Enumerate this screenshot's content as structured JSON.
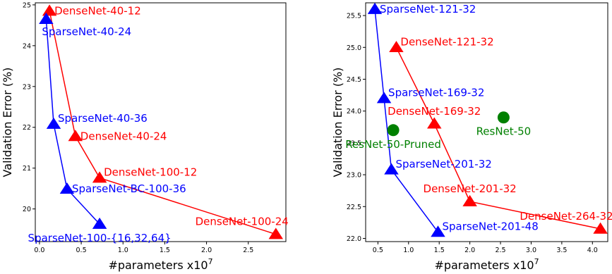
{
  "chart_data": [
    {
      "type": "scatter",
      "xlabel": "#parameters x10",
      "xlabel_exp": "7",
      "ylabel": "Validation Error (%)",
      "xlim": [
        -0.05,
        2.95
      ],
      "ylim": [
        19.2,
        25.05
      ],
      "xticks": [
        0.0,
        0.5,
        1.0,
        1.5,
        2.0,
        2.5
      ],
      "yticks": [
        20,
        21,
        22,
        23,
        24,
        25
      ],
      "xtick_labels": [
        "0.0",
        "0.5",
        "1.0",
        "1.5",
        "2.0",
        "2.5"
      ],
      "ytick_labels": [
        "20",
        "21",
        "22",
        "23",
        "24",
        "25"
      ],
      "grid": false,
      "series": [
        {
          "color": "#ff0000",
          "marker": "triangle",
          "line": true,
          "points": [
            {
              "x": 0.12,
              "y": 24.85,
              "label": "DenseNet-40-12",
              "label_pos": "right"
            },
            {
              "x": 0.43,
              "y": 21.78,
              "label": "DenseNet-40-24",
              "label_pos": "right"
            },
            {
              "x": 0.72,
              "y": 20.76,
              "label": "DenseNet-100-12",
              "label_pos": "right-up"
            },
            {
              "x": 2.83,
              "y": 19.38,
              "label": "DenseNet-100-24",
              "label_pos": "above-left"
            }
          ]
        },
        {
          "color": "#0000ff",
          "marker": "triangle",
          "line": true,
          "points": [
            {
              "x": 0.08,
              "y": 24.65,
              "label": "SparseNet-40-24",
              "label_pos": "below-right"
            },
            {
              "x": 0.17,
              "y": 22.08,
              "label": "SparseNet-40-36",
              "label_pos": "right-up"
            },
            {
              "x": 0.33,
              "y": 20.49,
              "label": "SparseNet-BC-100-36",
              "label_pos": "right"
            },
            {
              "x": 0.72,
              "y": 19.63,
              "label": "SparseNet-100-{16,32,64}",
              "label_pos": "below-center"
            }
          ]
        }
      ]
    },
    {
      "type": "scatter",
      "xlabel": "#parameters x10",
      "xlabel_exp": "7",
      "ylabel": "Validation Error (%)",
      "xlim": [
        0.3,
        4.25
      ],
      "ylim": [
        21.95,
        25.7
      ],
      "xticks": [
        0.5,
        1.0,
        1.5,
        2.0,
        2.5,
        3.0,
        3.5,
        4.0
      ],
      "yticks": [
        22.0,
        22.5,
        23.0,
        23.5,
        24.0,
        24.5,
        25.0,
        25.5
      ],
      "xtick_labels": [
        "0.5",
        "1.0",
        "1.5",
        "2.0",
        "2.5",
        "3.0",
        "3.5",
        "4.0"
      ],
      "ytick_labels": [
        "22.0",
        "22.5",
        "23.0",
        "23.5",
        "24.0",
        "24.5",
        "25.0",
        "25.5"
      ],
      "grid": false,
      "series": [
        {
          "color": "#ff0000",
          "marker": "triangle",
          "line": true,
          "points": [
            {
              "x": 0.8,
              "y": 25.0,
              "label": "DenseNet-121-32",
              "label_pos": "right-up"
            },
            {
              "x": 1.42,
              "y": 23.8,
              "label": "DenseNet-169-32",
              "label_pos": "above-center"
            },
            {
              "x": 2.0,
              "y": 22.58,
              "label": "DenseNet-201-32",
              "label_pos": "above-center"
            },
            {
              "x": 4.13,
              "y": 22.15,
              "label": "DenseNet-264-32",
              "label_pos": "above-left"
            }
          ]
        },
        {
          "color": "#0000ff",
          "marker": "triangle",
          "line": true,
          "points": [
            {
              "x": 0.45,
              "y": 25.6,
              "label": "SparseNet-121-32",
              "label_pos": "right"
            },
            {
              "x": 0.6,
              "y": 24.2,
              "label": "SparseNet-169-32",
              "label_pos": "right-up"
            },
            {
              "x": 0.72,
              "y": 23.08,
              "label": "SparseNet-201-32",
              "label_pos": "right-up"
            },
            {
              "x": 1.48,
              "y": 22.1,
              "label": "SparseNet-201-48",
              "label_pos": "right-up"
            }
          ]
        },
        {
          "color": "#008000",
          "marker": "circle",
          "line": false,
          "points": [
            {
              "x": 0.75,
              "y": 23.7,
              "label": "ResNet-50-Pruned",
              "label_pos": "below-center"
            },
            {
              "x": 2.55,
              "y": 23.9,
              "label": "ResNet-50",
              "label_pos": "below-center"
            }
          ]
        }
      ]
    }
  ]
}
